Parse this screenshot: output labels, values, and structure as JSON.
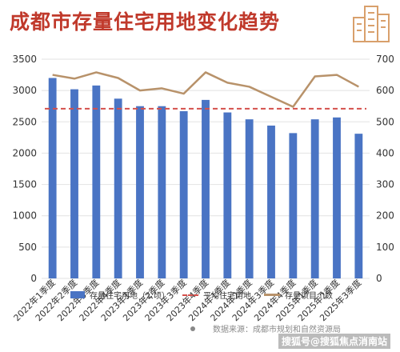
{
  "title": "成都市存量住宅用地变化趋势",
  "chart_data": {
    "type": "bar",
    "categories": [
      "2022年1季度",
      "2022年2季度",
      "2022年3季度",
      "2022年4季度",
      "2023年1季度",
      "2023年2季度",
      "2023年3季度",
      "2023年4季度",
      "2024年1季度",
      "2024年2季度",
      "2024年3季度",
      "2024年4季度",
      "2025年1季度",
      "2025年2季度",
      "2025年3季度"
    ],
    "series": [
      {
        "name": "存量住宅用地（公顷）",
        "type": "bar",
        "axis": "left",
        "values": [
          3200,
          3020,
          3080,
          2870,
          2750,
          2750,
          2670,
          2850,
          2650,
          2540,
          2440,
          2320,
          2540,
          2570,
          2310
        ]
      },
      {
        "name": "平均住宅用地",
        "type": "dashed-line",
        "axis": "left",
        "values": [
          2710,
          2710,
          2710,
          2710,
          2710,
          2710,
          2710,
          2710,
          2710,
          2710,
          2710,
          2710,
          2710,
          2710,
          2710
        ]
      },
      {
        "name": "存量项目个数",
        "type": "line",
        "axis": "right",
        "values": [
          650,
          638,
          658,
          640,
          600,
          607,
          590,
          658,
          625,
          612,
          580,
          548,
          645,
          650,
          612
        ]
      }
    ],
    "ylim": [
      0,
      3500
    ],
    "yticks": [
      "0",
      "500",
      "1000",
      "1500",
      "2000",
      "2500",
      "3000",
      "3500"
    ],
    "y2lim": [
      0,
      700
    ],
    "y2ticks": [
      "0",
      "100",
      "200",
      "300",
      "400",
      "500",
      "600",
      "700"
    ],
    "grid": true,
    "legend": "bottom",
    "colors": {
      "bar": "#4a74c4",
      "avg": "#d4504c",
      "line": "#b8926a"
    }
  },
  "source": "数据来源：成都市规划和自然资源局",
  "watermark": "搜狐号@搜狐焦点消南站"
}
